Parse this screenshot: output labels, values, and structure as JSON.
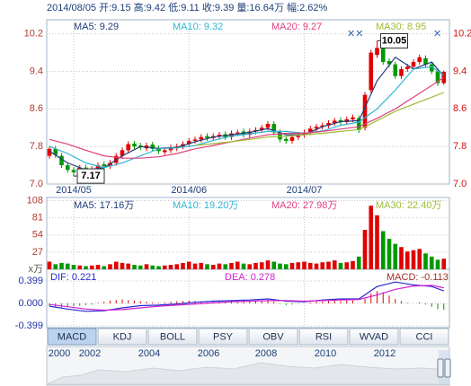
{
  "chart_data": {
    "type": "candlestick",
    "header": "2014/08/05 开:9.15 高:9.42 低:9.11 收:9.39 量:16.64万 幅:2.62%",
    "up_color": "#e00000",
    "down_color": "#009900",
    "candles": {
      "open": [
        7.6,
        7.75,
        7.6,
        7.4,
        7.3,
        7.25,
        7.35,
        7.28,
        7.32,
        7.42,
        7.38,
        7.45,
        7.6,
        7.72,
        7.86,
        7.82,
        7.76,
        7.84,
        7.76,
        7.68,
        7.72,
        7.76,
        7.8,
        7.85,
        7.92,
        7.95,
        8.02,
        7.98,
        8.02,
        8.06,
        8.0,
        8.08,
        8.12,
        8.05,
        8.12,
        8.15,
        8.2,
        8.28,
        8.1,
        7.96,
        7.92,
        8.0,
        8.05,
        8.1,
        8.18,
        8.22,
        8.25,
        8.3,
        8.36,
        8.32,
        8.38,
        8.4,
        8.2,
        9.0,
        9.75,
        9.9,
        9.62,
        9.55,
        9.3,
        9.45,
        9.5,
        9.6,
        9.68,
        9.55,
        9.4,
        9.15
      ],
      "high": [
        7.81,
        7.81,
        7.66,
        7.46,
        7.36,
        7.41,
        7.41,
        7.38,
        7.46,
        7.48,
        7.51,
        7.66,
        7.78,
        7.91,
        7.92,
        7.88,
        7.88,
        7.9,
        7.82,
        7.78,
        7.84,
        7.86,
        7.91,
        7.98,
        8.01,
        8.06,
        8.08,
        8.08,
        8.11,
        8.12,
        8.14,
        8.16,
        8.18,
        8.18,
        8.21,
        8.26,
        8.34,
        8.34,
        8.16,
        8.02,
        8.06,
        8.11,
        8.16,
        8.24,
        8.28,
        8.31,
        8.36,
        8.41,
        8.42,
        8.44,
        8.48,
        8.46,
        8.96,
        9.86,
        10.05,
        9.96,
        9.68,
        9.61,
        9.51,
        9.56,
        9.66,
        9.76,
        9.74,
        9.61,
        9.46,
        9.42
      ],
      "low": [
        7.54,
        7.56,
        7.34,
        7.24,
        7.17,
        7.19,
        7.22,
        7.22,
        7.26,
        7.32,
        7.32,
        7.39,
        7.54,
        7.66,
        7.74,
        7.72,
        7.7,
        7.69,
        7.64,
        7.62,
        7.66,
        7.7,
        7.74,
        7.79,
        7.86,
        7.89,
        7.92,
        7.92,
        7.96,
        7.94,
        7.94,
        8.02,
        7.99,
        7.99,
        8.06,
        8.09,
        8.14,
        8.04,
        7.89,
        7.86,
        7.86,
        7.94,
        7.99,
        8.04,
        8.12,
        8.16,
        8.19,
        8.24,
        8.26,
        8.26,
        8.32,
        8.09,
        8.14,
        8.94,
        9.69,
        9.54,
        9.49,
        9.24,
        9.24,
        9.39,
        9.44,
        9.54,
        9.49,
        9.34,
        9.09,
        9.11
      ],
      "close": [
        7.75,
        7.62,
        7.4,
        7.3,
        7.25,
        7.35,
        7.28,
        7.32,
        7.4,
        7.38,
        7.45,
        7.6,
        7.72,
        7.85,
        7.8,
        7.78,
        7.82,
        7.75,
        7.7,
        7.72,
        7.78,
        7.8,
        7.85,
        7.92,
        7.95,
        8.0,
        7.98,
        8.02,
        8.05,
        8.0,
        8.08,
        8.1,
        8.05,
        8.12,
        8.15,
        8.2,
        8.28,
        8.1,
        7.95,
        7.92,
        8.0,
        8.05,
        8.1,
        8.18,
        8.22,
        8.25,
        8.3,
        8.35,
        8.32,
        8.38,
        8.42,
        8.15,
        8.9,
        9.8,
        9.9,
        9.6,
        9.55,
        9.3,
        9.45,
        9.5,
        9.6,
        9.7,
        9.55,
        9.4,
        9.15,
        9.39
      ]
    },
    "ylim": [
      7.0,
      10.5
    ],
    "yticks": [
      {
        "value": 7,
        "label": "7.0"
      },
      7.8,
      8.6,
      9.4,
      10.2
    ],
    "xticks": [
      {
        "value": 4,
        "label": "2014/05"
      },
      {
        "value": 23,
        "label": "2014/06"
      },
      {
        "value": 42,
        "label": "2014/07"
      }
    ],
    "grid": true,
    "ma_lines": [
      {
        "label": "MA5: 9.29",
        "color": "#1f3b7a",
        "x": [
          0,
          3,
          6,
          9,
          12,
          15,
          18,
          21,
          24,
          27,
          30,
          33,
          36,
          39,
          42,
          45,
          48,
          51,
          54,
          57,
          60,
          63,
          65
        ],
        "values": [
          7.7,
          7.45,
          7.3,
          7.35,
          7.6,
          7.8,
          7.76,
          7.78,
          7.9,
          8.0,
          8.05,
          8.1,
          8.18,
          8.05,
          8.05,
          8.22,
          8.33,
          8.35,
          9.2,
          9.7,
          9.45,
          9.6,
          9.29
        ]
      },
      {
        "label": "MA10: 9.32",
        "color": "#2fb4d2",
        "x": [
          0,
          3,
          6,
          9,
          12,
          15,
          18,
          21,
          24,
          27,
          30,
          33,
          36,
          39,
          42,
          45,
          48,
          51,
          54,
          57,
          60,
          63,
          65
        ],
        "values": [
          7.8,
          7.65,
          7.45,
          7.35,
          7.45,
          7.6,
          7.75,
          7.77,
          7.82,
          7.93,
          8.02,
          8.07,
          8.12,
          8.12,
          8.08,
          8.13,
          8.25,
          8.32,
          8.6,
          9.0,
          9.45,
          9.5,
          9.32
        ]
      },
      {
        "label": "MA20: 9.27",
        "color": "#e0407f",
        "x": [
          0,
          3,
          6,
          9,
          12,
          15,
          18,
          21,
          24,
          27,
          30,
          33,
          36,
          39,
          42,
          45,
          48,
          51,
          54,
          57,
          60,
          63,
          65
        ],
        "values": [
          7.95,
          7.85,
          7.72,
          7.6,
          7.55,
          7.55,
          7.58,
          7.65,
          7.75,
          7.82,
          7.9,
          7.98,
          8.05,
          8.08,
          8.08,
          8.12,
          8.17,
          8.22,
          8.4,
          8.6,
          8.85,
          9.1,
          9.27
        ]
      },
      {
        "label": "MA30: 8.95",
        "color": "#9dbb33",
        "x": [
          24,
          27,
          30,
          33,
          36,
          39,
          42,
          45,
          48,
          51,
          54,
          57,
          60,
          63,
          65
        ],
        "values": [
          7.82,
          7.86,
          7.9,
          7.95,
          8.0,
          8.02,
          8.05,
          8.08,
          8.12,
          8.16,
          8.35,
          8.55,
          8.7,
          8.85,
          8.95
        ]
      }
    ],
    "annotations": [
      {
        "label": "10.05",
        "index": 54,
        "at": "high"
      },
      {
        "label": "7.17",
        "index": 4,
        "at": "low"
      }
    ],
    "volume": {
      "values": [
        12,
        8,
        10,
        9,
        7,
        6,
        5,
        6,
        7,
        5,
        8,
        12,
        10,
        9,
        7,
        6,
        8,
        6,
        5,
        6,
        7,
        8,
        10,
        12,
        9,
        10,
        8,
        7,
        9,
        8,
        10,
        12,
        9,
        8,
        10,
        11,
        14,
        12,
        9,
        8,
        10,
        11,
        12,
        10,
        9,
        11,
        12,
        14,
        10,
        11,
        13,
        20,
        62,
        100,
        85,
        60,
        48,
        40,
        35,
        28,
        30,
        32,
        25,
        20,
        15,
        16.64
      ],
      "ylim": [
        0,
        113
      ],
      "yticks": [
        27,
        54,
        81,
        108
      ],
      "unit": "x万",
      "legend": [
        {
          "label": "MA5: 17.16万",
          "color": "#1f3b7a"
        },
        {
          "label": "MA10: 19.20万",
          "color": "#2fb4d2"
        },
        {
          "label": "MA20: 27.98万",
          "color": "#e0407f"
        },
        {
          "label": "MA30: 22.40万",
          "color": "#9dbb33"
        }
      ]
    },
    "macd": {
      "hist": [
        -0.05,
        -0.06,
        -0.07,
        -0.06,
        -0.05,
        -0.04,
        -0.03,
        -0.02,
        0.01,
        0.03,
        0.05,
        0.06,
        0.07,
        0.06,
        0.05,
        0.04,
        0.03,
        0.02,
        0.01,
        0.02,
        0.03,
        0.04,
        0.04,
        0.05,
        0.04,
        0.03,
        0.02,
        0.03,
        0.03,
        0.02,
        0.03,
        0.04,
        0.03,
        0.03,
        0.04,
        0.05,
        0.06,
        0.03,
        -0.01,
        -0.03,
        -0.02,
        -0.01,
        0.0,
        0.02,
        0.03,
        0.03,
        0.04,
        0.05,
        0.04,
        0.05,
        0.05,
        0.0,
        0.08,
        0.18,
        0.22,
        0.2,
        0.14,
        0.08,
        0.04,
        0.01,
        0.0,
        0.02,
        -0.02,
        -0.06,
        -0.1,
        -0.113
      ],
      "hist_label": "MACD: -0.113",
      "ylim": [
        -0.431,
        0.606
      ],
      "yticks": [
        -0.399,
        {
          "value": 0,
          "label": "0.000"
        },
        0.399
      ],
      "lines": [
        {
          "label": "DIF: 0.221",
          "color": "#2a2ad0",
          "x": [
            0,
            3,
            6,
            9,
            12,
            15,
            18,
            21,
            24,
            27,
            30,
            33,
            36,
            39,
            42,
            45,
            48,
            51,
            54,
            57,
            60,
            63,
            65
          ],
          "values": [
            -0.05,
            -0.1,
            -0.14,
            -0.13,
            -0.08,
            -0.04,
            -0.03,
            -0.01,
            0.02,
            0.04,
            0.05,
            0.06,
            0.08,
            0.04,
            0.03,
            0.06,
            0.08,
            0.08,
            0.3,
            0.38,
            0.33,
            0.3,
            0.221
          ]
        },
        {
          "label": "DEA: 0.278",
          "color": "#d020d0",
          "x": [
            0,
            3,
            6,
            9,
            12,
            15,
            18,
            21,
            24,
            27,
            30,
            33,
            36,
            39,
            42,
            45,
            48,
            51,
            54,
            57,
            60,
            63,
            65
          ],
          "values": [
            -0.02,
            -0.06,
            -0.1,
            -0.12,
            -0.11,
            -0.08,
            -0.05,
            -0.03,
            -0.01,
            0.01,
            0.03,
            0.04,
            0.05,
            0.05,
            0.04,
            0.05,
            0.06,
            0.07,
            0.15,
            0.25,
            0.31,
            0.32,
            0.278
          ]
        }
      ]
    },
    "tabs": [
      "MACD",
      "KDJ",
      "BOLL",
      "PSY",
      "OBV",
      "RSI",
      "WVAD",
      "CCI"
    ],
    "selected_tab": 0,
    "timeline_years": [
      "2000",
      "2002",
      "2004",
      "2006",
      "2008",
      "2010",
      "2012"
    ]
  }
}
